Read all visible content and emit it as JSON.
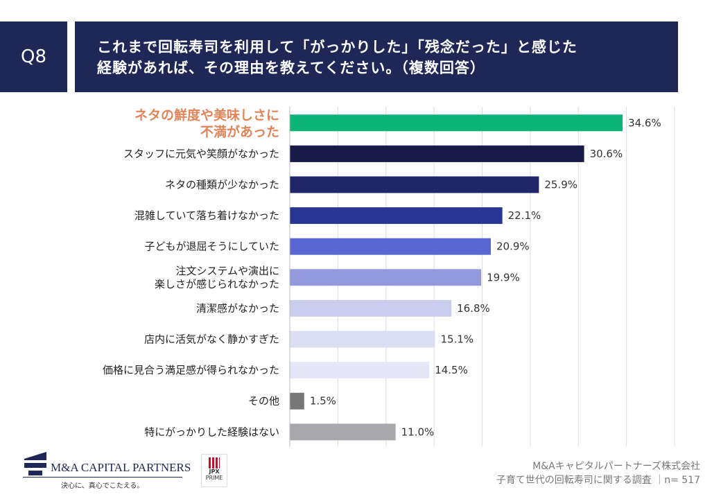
{
  "header": {
    "q_number": "Q8",
    "title_line1": "これまで回転寿司を利用して「がっかりした」「残念だった」と感じた",
    "title_line2": "経験があれば、その理由を教えてください。（複数回答）"
  },
  "chart_data": {
    "type": "bar",
    "orientation": "horizontal",
    "xlim": [
      0,
      40
    ],
    "grid": true,
    "categories": [
      [
        "ネタの鮮度や美味しさに",
        "不満があった"
      ],
      [
        "スタッフに元気や笑顔がなかった"
      ],
      [
        "ネタの種類が少なかった"
      ],
      [
        "混雑していて落ち着けなかった"
      ],
      [
        "子どもが退屈そうにしていた"
      ],
      [
        "注文システムや演出に",
        "楽しさが感じられなかった"
      ],
      [
        "清潔感がなかった"
      ],
      [
        "店内に活気がなく静かすぎた"
      ],
      [
        "価格に見合う満足感が得られなかった"
      ],
      [
        "その他"
      ],
      [
        "特にがっかりした経験はない"
      ]
    ],
    "values": [
      34.6,
      30.6,
      25.9,
      22.1,
      20.9,
      19.9,
      16.8,
      15.1,
      14.5,
      1.5,
      11.0
    ],
    "value_labels": [
      "34.6%",
      "30.6%",
      "25.9%",
      "22.1%",
      "20.9%",
      "19.9%",
      "16.8%",
      "15.1%",
      "14.5%",
      "1.5%",
      "11.0%"
    ],
    "colors": [
      "#0bb377",
      "#1a1a48",
      "#1f2566",
      "#283593",
      "#5a68d4",
      "#9499de",
      "#cacdee",
      "#dcdef3",
      "#e6e7f6",
      "#777779",
      "#a8a7ab"
    ],
    "highlight_index": 0,
    "highlight_color": "#e0845a"
  },
  "footer": {
    "company": "M&Aキャピタルパートナーズ株式会社",
    "survey": "子育て世代の回転寿司に関する調査 ｜n= 517",
    "logo_name": "M&A CAPITAL PARTNERS",
    "logo_tagline": "決心に、真心でこたえる。",
    "jpx": "JPX",
    "jpx_sub": "PRIME"
  }
}
